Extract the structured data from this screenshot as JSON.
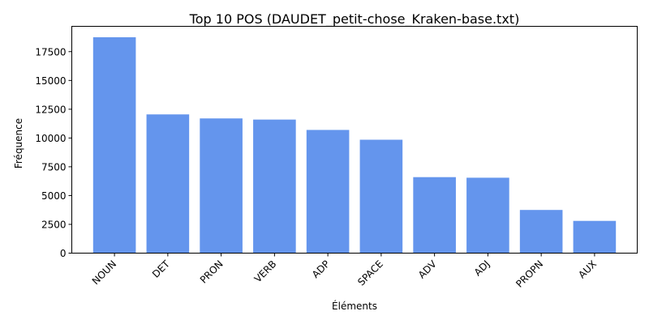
{
  "chart_data": {
    "type": "bar",
    "title": "Top 10 POS (DAUDET_petit-chose_Kraken-base.txt)",
    "xlabel": "Éléments",
    "ylabel": "Fréquence",
    "categories": [
      "NOUN",
      "DET",
      "PRON",
      "VERB",
      "ADP",
      "SPACE",
      "ADV",
      "ADJ",
      "PROPN",
      "AUX"
    ],
    "values": [
      18750,
      12050,
      11700,
      11600,
      10700,
      9850,
      6600,
      6550,
      3750,
      2800
    ],
    "ylim": [
      0,
      19700
    ],
    "yticks": [
      0,
      2500,
      5000,
      7500,
      10000,
      12500,
      15000,
      17500
    ],
    "ytick_labels": [
      "0",
      "2500",
      "5000",
      "7500",
      "10000",
      "12500",
      "15000",
      "17500"
    ],
    "bar_color": "#6495ed",
    "grid": false,
    "legend": null
  }
}
